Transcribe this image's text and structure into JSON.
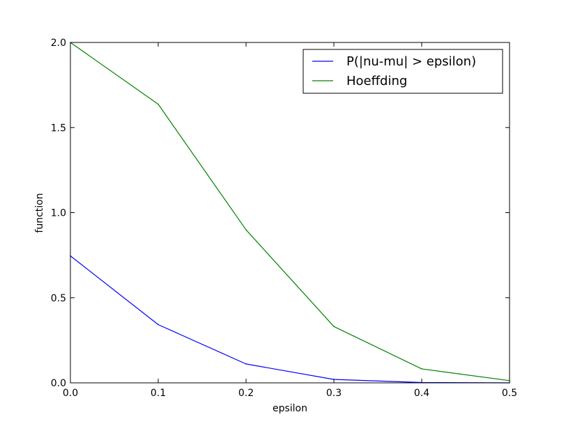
{
  "chart_data": {
    "type": "line",
    "title": "",
    "xlabel": "epsilon",
    "ylabel": "function",
    "xlim": [
      0.0,
      0.5
    ],
    "ylim": [
      0.0,
      2.0
    ],
    "x_ticks": [
      "0.0",
      "0.1",
      "0.2",
      "0.3",
      "0.4",
      "0.5"
    ],
    "y_ticks": [
      "0.0",
      "0.5",
      "1.0",
      "1.5",
      "2.0"
    ],
    "grid": false,
    "legend_position": "top-right",
    "x": [
      0.0,
      0.1,
      0.2,
      0.3,
      0.4,
      0.5
    ],
    "series": [
      {
        "name": "P(|nu-mu| > epsilon)",
        "color": "#0000ff",
        "values": [
          0.746,
          0.342,
          0.111,
          0.02,
          0.002,
          0.0
        ]
      },
      {
        "name": "Hoeffding",
        "color": "#008000",
        "values": [
          2.0,
          1.637,
          0.899,
          0.331,
          0.082,
          0.013
        ]
      }
    ]
  }
}
